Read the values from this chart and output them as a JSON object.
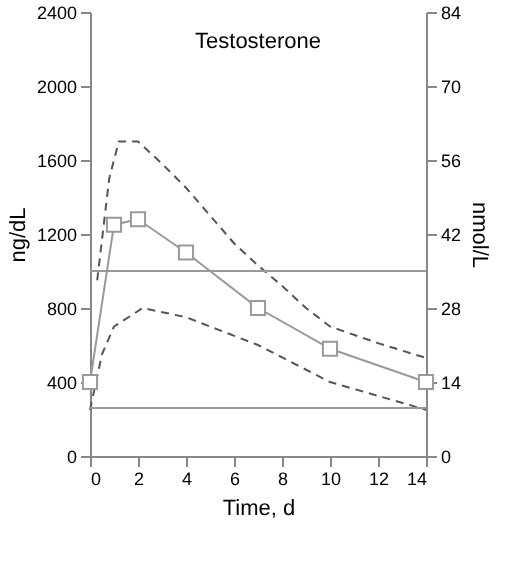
{
  "chart_data": {
    "type": "line",
    "title": "Testosterone",
    "xlabel": "Time, d",
    "ylabel": "ng/dL",
    "y2label": "nmol/L",
    "xlim": [
      0,
      14
    ],
    "xticks": [
      0,
      2,
      4,
      6,
      8,
      10,
      12,
      14
    ],
    "ylim": [
      0,
      2400
    ],
    "yticks": [
      0,
      400,
      800,
      1200,
      1600,
      2000,
      2400
    ],
    "y2lim": [
      0,
      84
    ],
    "y2ticks": [
      0,
      14,
      28,
      42,
      56,
      70,
      84
    ],
    "grid": false,
    "series": [
      {
        "color": "#555555",
        "line_style": "dashed",
        "marker": "none",
        "x": [
          0.3,
          0.8,
          1.2,
          2,
          3,
          4,
          5,
          6,
          7,
          8,
          9,
          10,
          12,
          14
        ],
        "values": [
          950,
          1500,
          1700,
          1700,
          1580,
          1450,
          1300,
          1150,
          1030,
          920,
          800,
          700,
          610,
          530
        ]
      },
      {
        "color": "#555555",
        "line_style": "dashed",
        "marker": "none",
        "x": [
          0,
          0.5,
          1,
          2.2,
          4,
          7,
          10,
          14
        ],
        "values": [
          250,
          550,
          700,
          800,
          750,
          600,
          400,
          250
        ]
      },
      {
        "color": "#999999",
        "line_style": "solid",
        "marker": "square",
        "x": [
          0,
          1,
          2,
          4,
          7,
          10,
          14
        ],
        "values": [
          400,
          1250,
          1280,
          1100,
          800,
          580,
          400
        ]
      }
    ],
    "ref_lines": [
      {
        "axis": "y",
        "value": 1000,
        "color": "#999999"
      },
      {
        "axis": "y",
        "value": 260,
        "color": "#999999"
      }
    ]
  }
}
